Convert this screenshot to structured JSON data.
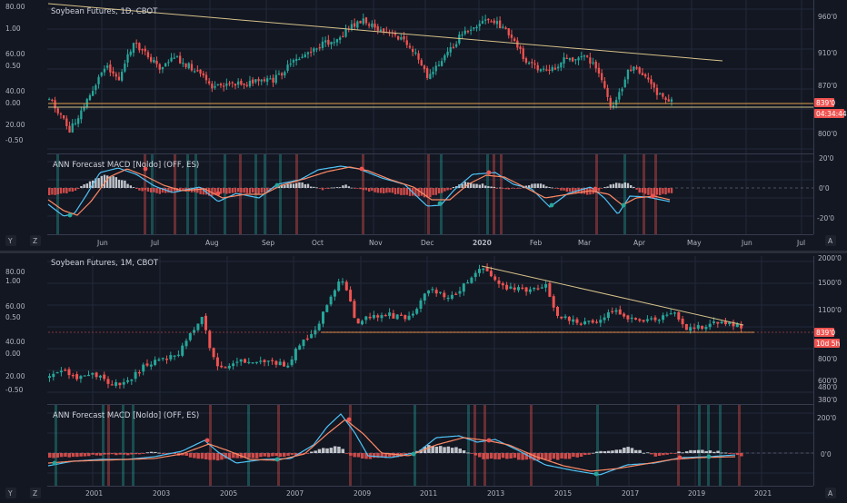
{
  "colors": {
    "background": "#131722",
    "grid": "#22283a",
    "up": "#26a69a",
    "down": "#ef5350",
    "trendline": "#d6c28a",
    "support": "#e0a24d",
    "macd": "#4fc3f7",
    "signal": "#ff8a65",
    "price_tag": "#ef5350"
  },
  "charts": [
    {
      "price_title": "Soybean Futures, 1D, CBOT",
      "macd_title": "ANN Forecast MACD [Noldo] (OFF, ES)",
      "left_axis_labels": [
        "80.00",
        "1.00",
        "60.00",
        "0.50",
        "40.00",
        "0.00",
        "20.00",
        "-0.50"
      ],
      "right_axis_labels": [
        "960'0",
        "910'0",
        "870'0",
        "800'0"
      ],
      "macd_axis_labels": [
        "20'0",
        "0'0",
        "-20'0"
      ],
      "time_labels": [
        "Jun",
        "Jul",
        "Aug",
        "Sep",
        "Oct",
        "Nov",
        "Dec",
        "2020",
        "Feb",
        "Mar",
        "Apr",
        "May",
        "Jun",
        "Jul"
      ],
      "price_tag": "839'0",
      "countdown_tag": "04:34:44",
      "nav_left": [
        "Y",
        "Z"
      ],
      "nav_right": "A"
    },
    {
      "price_title": "Soybean Futures, 1M, CBOT",
      "macd_title": "ANN Forecast MACD [Noldo] (OFF, ES)",
      "left_axis_labels": [
        "80.00",
        "1.00",
        "60.00",
        "0.50",
        "40.00",
        "0.00",
        "20.00",
        "-0.50"
      ],
      "right_axis_labels": [
        "2000'0",
        "1500'0",
        "1100'0",
        "800'0",
        "600'0",
        "480'0",
        "380'0"
      ],
      "macd_axis_labels": [
        "200'0",
        "0'0"
      ],
      "time_labels": [
        "2001",
        "2003",
        "2005",
        "2007",
        "2009",
        "2011",
        "2013",
        "2015",
        "2017",
        "2019",
        "2021"
      ],
      "price_tag": "839'0",
      "countdown_tag": "10d 5h",
      "nav_left": [
        "Y",
        "Z"
      ],
      "nav_right": "A"
    }
  ]
}
